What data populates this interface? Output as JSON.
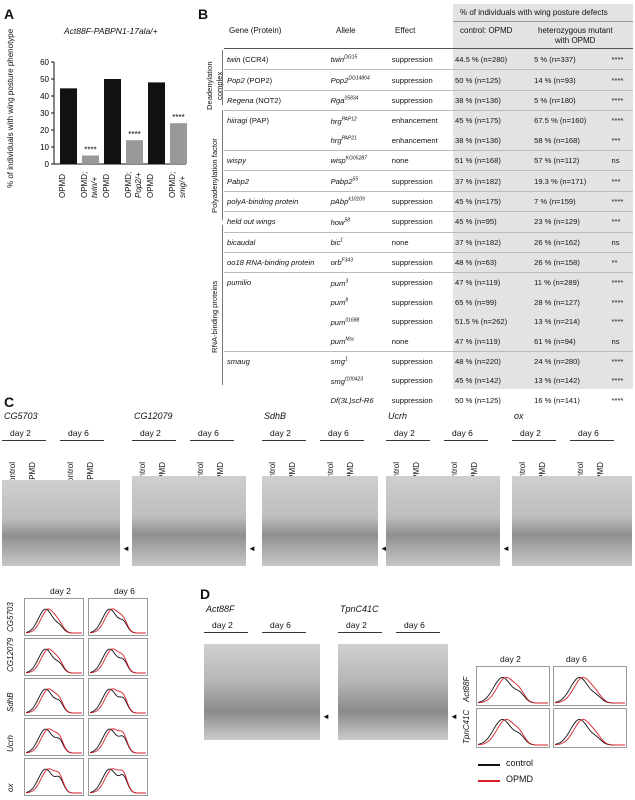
{
  "panelA": {
    "label": "A",
    "title": "Act88F-PABPN1-17ala/+",
    "ylabel": "% of individuals with wing posture phenotype",
    "yticks": [
      "0",
      "10",
      "20",
      "30",
      "40",
      "50",
      "60"
    ],
    "bar_labels": [
      {
        "line1": "OPMD",
        "line2": ""
      },
      {
        "line1": "OPMD;",
        "line2": "twin/+"
      },
      {
        "line1": "OPMD",
        "line2": ""
      },
      {
        "line1": "OPMD;",
        "line2": "Pop2/+"
      },
      {
        "line1": "OPMD",
        "line2": ""
      },
      {
        "line1": "OPMD;",
        "line2": "smg/+"
      }
    ],
    "sig": "****"
  },
  "chart_data": {
    "type": "bar",
    "categories": [
      "OPMD",
      "OPMD; twin/+",
      "OPMD",
      "OPMD; Pop2/+",
      "OPMD",
      "OPMD; smg/+"
    ],
    "values": [
      44.5,
      5,
      50,
      14,
      48,
      24
    ],
    "ylim": [
      0,
      60
    ],
    "colors": [
      "#111111",
      "#999999",
      "#111111",
      "#999999",
      "#111111",
      "#999999"
    ],
    "ylabel": "% of individuals with wing posture phenotype"
  },
  "panelB": {
    "label": "B",
    "header_top": "% of individuals with wing posture defects",
    "col_gene": "Gene (Protein)",
    "col_allele": "Allele",
    "col_effect": "Effect",
    "col_control": "control: OPMD",
    "col_hetero_1": "heterozygous mutant",
    "col_hetero_2": "with OPMD",
    "groups": [
      {
        "name_1": "Deadenylation",
        "name_2": "complex"
      },
      {
        "name_1": "Polyadenylation factor",
        "name_2": ""
      },
      {
        "name_1": "RNA-binding proteins",
        "name_2": ""
      }
    ],
    "rows": [
      {
        "gene": "twin (CCR4)",
        "allele": "twin",
        "sup": "DG15",
        "effect": "suppression",
        "control": "44.5 % (n=280)",
        "hetero": "5 % (n=337)",
        "sig": "****"
      },
      {
        "gene": "Pop2 (POP2)",
        "allele": "Pop2",
        "sup": "DG14804",
        "effect": "suppression",
        "control": "50 % (n=125)",
        "hetero": "14 % (n=93)",
        "sig": "****"
      },
      {
        "gene": "Regena (NOT2)",
        "allele": "Rga",
        "sup": "05834",
        "effect": "suppression",
        "control": "38 % (n=136)",
        "hetero": "5 % (n=180)",
        "sig": "****"
      },
      {
        "gene": "hiiragi (PAP)",
        "allele": "hrg",
        "sup": "PAP12",
        "effect": "enhancement",
        "control": "45 % (n=175)",
        "hetero": "67.5 % (n=160)",
        "sig": "****"
      },
      {
        "gene": "",
        "allele": "hrg",
        "sup": "PAP21",
        "effect": "enhancement",
        "control": "38 % (n=136)",
        "hetero": "58 % (n=168)",
        "sig": "***"
      },
      {
        "gene": "wispy",
        "allele": "wisp",
        "sup": "KG05287",
        "effect": "none",
        "control": "51 % (n=168)",
        "hetero": "57 % (n=112)",
        "sig": "ns"
      },
      {
        "gene": "Pabp2",
        "allele": "Pabp2",
        "sup": "55",
        "effect": "suppression",
        "control": "37 % (n=182)",
        "hetero": "19.3 % (n=171)",
        "sig": "***"
      },
      {
        "gene": "polyA-binding protein",
        "allele": "pAbp",
        "sup": "k10109",
        "effect": "suppression",
        "control": "45 % (n=175)",
        "hetero": "7 % (n=159)",
        "sig": "****"
      },
      {
        "gene": "held out wings",
        "allele": "how",
        "sup": "58",
        "effect": "suppression",
        "control": "45 % (n=95)",
        "hetero": "23 % (n=129)",
        "sig": "***"
      },
      {
        "gene": "bicaudal",
        "allele": "bic",
        "sup": "1",
        "effect": "none",
        "control": "37 % (n=182)",
        "hetero": "26 % (n=162)",
        "sig": "ns"
      },
      {
        "gene": "oo18 RNA-binding protein",
        "allele": "orb",
        "sup": "F343",
        "effect": "suppression",
        "control": "48 % (n=63)",
        "hetero": "26 % (n=158)",
        "sig": "**"
      },
      {
        "gene": "pumilio",
        "allele": "pum",
        "sup": "3",
        "effect": "suppression",
        "control": "47 % (n=119)",
        "hetero": "11 % (n=289)",
        "sig": "****"
      },
      {
        "gene": "",
        "allele": "pum",
        "sup": "8",
        "effect": "suppression",
        "control": "65 % (n=99)",
        "hetero": "28 % (n=127)",
        "sig": "****"
      },
      {
        "gene": "",
        "allele": "pum",
        "sup": "01688",
        "effect": "suppression",
        "control": "51.5 % (n=262)",
        "hetero": "13 % (n=214)",
        "sig": "****"
      },
      {
        "gene": "",
        "allele": "pum",
        "sup": "Msc",
        "effect": "none",
        "control": "47 % (n=119)",
        "hetero": "61 % (n=94)",
        "sig": "ns"
      },
      {
        "gene": "smaug",
        "allele": "smg",
        "sup": "1",
        "effect": "suppression",
        "control": "48 % (n=220)",
        "hetero": "24 % (n=280)",
        "sig": "****"
      },
      {
        "gene": "",
        "allele": "smg",
        "sup": "f100423",
        "effect": "suppression",
        "control": "45 % (n=142)",
        "hetero": "13 % (n=142)",
        "sig": "****"
      },
      {
        "gene": "",
        "allele": "Df(3L)scf-R6",
        "sup": "",
        "effect": "suppression",
        "control": "50 % (n=125)",
        "hetero": "16 % (n=141)",
        "sig": "****"
      }
    ]
  },
  "panelC": {
    "label": "C",
    "genes": [
      "CG5703",
      "CG12079",
      "SdhB",
      "Ucrh",
      "ox"
    ],
    "day2": "day 2",
    "day6": "day 6",
    "lane_control": "control",
    "lane_opmd": "OPMD",
    "arrow": "◄"
  },
  "panelD": {
    "label": "D",
    "genes": [
      "Act88F",
      "TpnC41C"
    ],
    "legend_control": "control",
    "legend_opmd": "OPMD",
    "legend_control_color": "#111111",
    "legend_opmd_color": "#d81f2a"
  }
}
